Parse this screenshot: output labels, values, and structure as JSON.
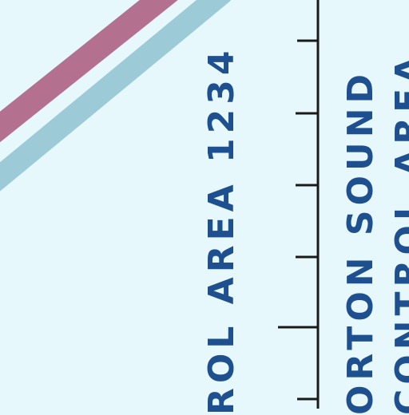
{
  "colors": {
    "background": "#e6f8fc",
    "label_blue": "#1e4f8e",
    "route_mauve": "#b4708f",
    "route_teal": "#9ccad6",
    "boundary_line": "#1a1a1a"
  },
  "labels": {
    "area_1": "ROL AREA 1234",
    "area_2_line_1": "ORTON SOUND",
    "area_2_line_2": "CONTROL AREA"
  }
}
